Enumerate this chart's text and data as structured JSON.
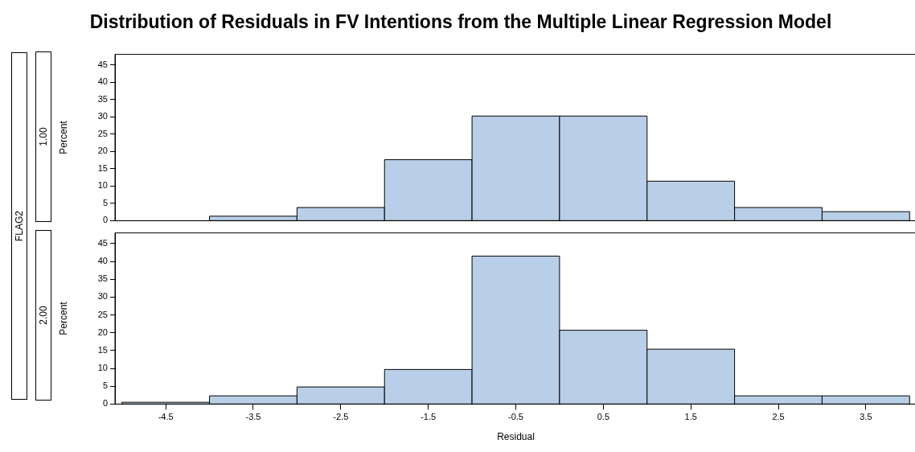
{
  "chart_data": [
    {
      "type": "histogram",
      "title": "Distribution of Residuals in FV Intentions from the Multiple Linear Regression Model",
      "subtitle": "1.00",
      "annotations": [
        "FLAG2"
      ],
      "ylabel": "Percent",
      "bins": [
        -4,
        -3,
        -2,
        -1,
        0,
        1,
        2,
        3,
        4
      ],
      "values": [
        1.3,
        3.8,
        17.6,
        30.2,
        30.2,
        11.4,
        3.8,
        2.6
      ],
      "color": "#b9cfe7",
      "xlim": [
        -5.08,
        4.08
      ],
      "xticks": [
        -4.5,
        -3.5,
        -2.5,
        -1.5,
        -0.5,
        0.5,
        1.5,
        2.5,
        3.5
      ],
      "ylim": [
        0,
        48
      ],
      "yticks": [
        0,
        5,
        10,
        15,
        20,
        25,
        30,
        35,
        40,
        45
      ],
      "tick_labels": "y"
    },
    {
      "type": "histogram",
      "subtitle": "2.00",
      "xlabel": "Residual",
      "ylabel": "Percent",
      "bins": [
        -5,
        -4,
        -3,
        -2,
        -1,
        0,
        1,
        2,
        3,
        4
      ],
      "values": [
        0.5,
        2.3,
        4.8,
        9.7,
        41.5,
        20.7,
        15.4,
        2.3,
        2.3
      ],
      "color": "#b9cfe7",
      "xlim": [
        -5.08,
        4.08
      ],
      "xticks": [
        -4.5,
        -3.5,
        -2.5,
        -1.5,
        -0.5,
        0.5,
        1.5,
        2.5,
        3.5
      ],
      "ylim": [
        0,
        48
      ],
      "yticks": [
        0,
        5,
        10,
        15,
        20,
        25,
        30,
        35,
        40,
        45
      ]
    }
  ]
}
